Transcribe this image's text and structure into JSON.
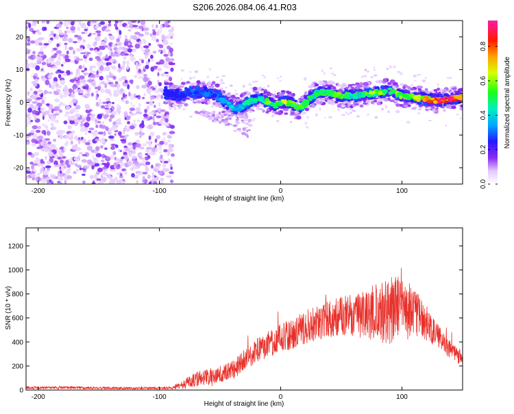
{
  "chart_data": [
    {
      "type": "heatmap",
      "title": "S206.2026.084.06.41.R03",
      "xlabel": "Height of straight line (km)",
      "ylabel": "Frequency (Hz)",
      "xlim": [
        -210,
        150
      ],
      "ylim": [
        -25,
        25
      ],
      "xticks": [
        -200,
        -100,
        0,
        100
      ],
      "xtick_labels": [
        "-200",
        "-100",
        "0",
        "100"
      ],
      "yticks": [
        20,
        10,
        0,
        -10,
        -20
      ],
      "ytick_labels": [
        "20",
        "10",
        "0",
        "-10",
        "-20"
      ],
      "colorbar": {
        "label": "Normalized spectral amplitude",
        "range": [
          0.0,
          0.95
        ],
        "ticks": [
          0.0,
          0.2,
          0.4,
          0.6,
          0.8
        ],
        "tick_labels": [
          "0.0",
          "0.2",
          "0.4",
          "0.6",
          "0.8"
        ]
      },
      "ridge": {
        "x": [
          -95,
          -85,
          -75,
          -65,
          -55,
          -45,
          -38,
          -33,
          -25,
          -18,
          -10,
          -5,
          0,
          5,
          10,
          15,
          20,
          25,
          30,
          40,
          50,
          60,
          70,
          80,
          90,
          100,
          110,
          120,
          130,
          140,
          150
        ],
        "freq": [
          3,
          2,
          3,
          3,
          2.5,
          0,
          -2,
          -1.5,
          0.5,
          1,
          0,
          -1,
          0,
          0,
          -0.5,
          -2,
          -0.5,
          1.5,
          3,
          3,
          2,
          2,
          2.5,
          3,
          3.5,
          2,
          1.5,
          1,
          0.5,
          1,
          1.5
        ],
        "amplitude": [
          0.2,
          0.25,
          0.3,
          0.3,
          0.3,
          0.35,
          0.4,
          0.4,
          0.45,
          0.5,
          0.55,
          0.55,
          0.6,
          0.6,
          0.6,
          0.55,
          0.55,
          0.5,
          0.5,
          0.55,
          0.6,
          0.5,
          0.55,
          0.6,
          0.5,
          0.6,
          0.65,
          0.7,
          0.85,
          0.9,
          0.8
        ]
      },
      "noise_region": [
        -210,
        -95
      ]
    },
    {
      "type": "line",
      "xlabel": "Height of straight line (km)",
      "ylabel": "SNR (10 * v/v)",
      "xlim": [
        -210,
        150
      ],
      "ylim": [
        0,
        1350
      ],
      "xticks": [
        -200,
        -100,
        0,
        100
      ],
      "xtick_labels": [
        "-200",
        "-100",
        "0",
        "100"
      ],
      "yticks": [
        0,
        200,
        400,
        600,
        800,
        1000,
        1200
      ],
      "ytick_labels": [
        "0",
        "200",
        "400",
        "600",
        "800",
        "1000",
        "1200"
      ],
      "color": "#e8302a",
      "envelope": {
        "x": [
          -210,
          -180,
          -150,
          -120,
          -90,
          -80,
          -70,
          -60,
          -50,
          -40,
          -30,
          -20,
          -10,
          0,
          10,
          20,
          30,
          40,
          50,
          60,
          70,
          80,
          90,
          100,
          110,
          120,
          130,
          140,
          150
        ],
        "mean": [
          20,
          20,
          18,
          15,
          18,
          50,
          90,
          110,
          130,
          160,
          250,
          330,
          380,
          430,
          470,
          520,
          560,
          600,
          620,
          620,
          630,
          650,
          680,
          700,
          650,
          560,
          450,
          330,
          250
        ],
        "spread": [
          10,
          10,
          10,
          8,
          10,
          40,
          60,
          70,
          70,
          80,
          90,
          100,
          110,
          120,
          130,
          140,
          150,
          160,
          170,
          180,
          200,
          250,
          300,
          250,
          200,
          150,
          100,
          80,
          50
        ]
      }
    }
  ]
}
